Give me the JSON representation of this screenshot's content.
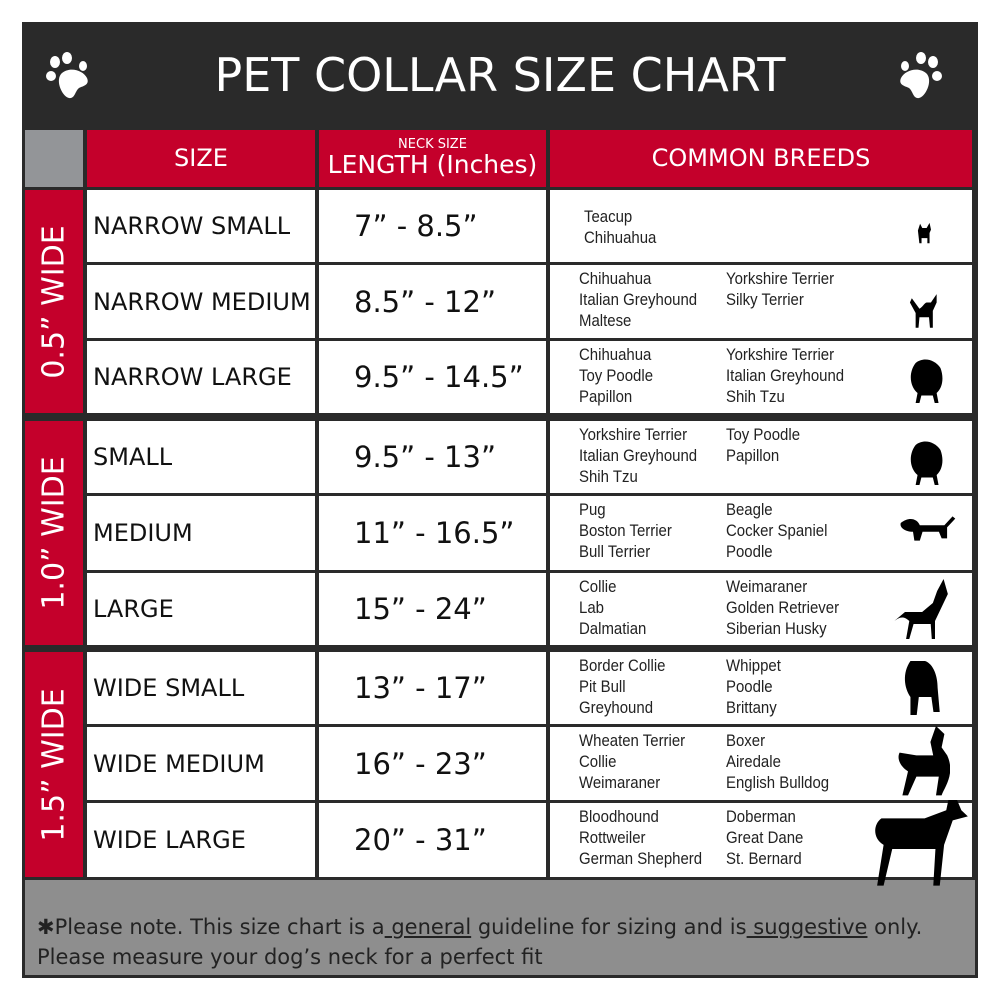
{
  "title": "PET COLLAR SIZE CHART",
  "headers": {
    "size": "SIZE",
    "length_small": "NECK SIZE",
    "length": "LENGTH (Inches)",
    "breeds": "COMMON BREEDS"
  },
  "groups": [
    {
      "label": "0.5” WIDE"
    },
    {
      "label": "1.0” WIDE"
    },
    {
      "label": "1.5” WIDE"
    }
  ],
  "rows": [
    {
      "size": "NARROW SMALL",
      "length": "7” - 8.5”",
      "breeds_left": [
        "Teacup",
        "Chihuahua"
      ],
      "breeds_right": []
    },
    {
      "size": "NARROW MEDIUM",
      "length": "8.5” - 12”",
      "breeds_left": [
        "Chihuahua",
        "Italian Greyhound",
        "Maltese"
      ],
      "breeds_right": [
        "Yorkshire Terrier",
        "Silky Terrier"
      ]
    },
    {
      "size": "NARROW LARGE",
      "length": "9.5” - 14.5”",
      "breeds_left": [
        "Chihuahua",
        "Toy Poodle",
        "Papillon"
      ],
      "breeds_right": [
        "Yorkshire Terrier",
        "Italian Greyhound",
        "Shih Tzu"
      ]
    },
    {
      "size": "SMALL",
      "length": "9.5” - 13”",
      "breeds_left": [
        "Yorkshire Terrier",
        "Italian Greyhound",
        "Shih Tzu"
      ],
      "breeds_right": [
        "Toy Poodle",
        "Papillon"
      ]
    },
    {
      "size": "MEDIUM",
      "length": "11” - 16.5”",
      "breeds_left": [
        "Pug",
        "Boston Terrier",
        "Bull Terrier"
      ],
      "breeds_right": [
        "Beagle",
        "Cocker Spaniel",
        "Poodle"
      ]
    },
    {
      "size": "LARGE",
      "length": "15” - 24”",
      "breeds_left": [
        "Collie",
        "Lab",
        "Dalmatian"
      ],
      "breeds_right": [
        "Weimaraner",
        "Golden Retriever",
        "Siberian Husky"
      ]
    },
    {
      "size": "WIDE SMALL",
      "length": "13” - 17”",
      "breeds_left": [
        "Border Collie",
        "Pit Bull",
        "Greyhound"
      ],
      "breeds_right": [
        "Whippet",
        "Poodle",
        "Brittany"
      ]
    },
    {
      "size": "WIDE MEDIUM",
      "length": "16” - 23”",
      "breeds_left": [
        "Wheaten Terrier",
        "Collie",
        "Weimaraner"
      ],
      "breeds_right": [
        "Boxer",
        "Airedale",
        "English Bulldog"
      ]
    },
    {
      "size": "WIDE LARGE",
      "length": "20” - 31”",
      "breeds_left": [
        "Bloodhound",
        "Rottweiler",
        "German Shepherd"
      ],
      "breeds_right": [
        "Doberman",
        "Great Dane",
        "St. Bernard"
      ]
    }
  ],
  "footer": {
    "p1": "✱Please note. This size chart is a",
    "w1": " general",
    "p2": " guideline for sizing and is",
    "w2": " suggestive",
    "p3": " only.",
    "line2": "Please measure your dog’s neck for a perfect fit"
  },
  "colors": {
    "accent": "#c4002b",
    "header": "#2a2a2a",
    "gray": "#939598"
  },
  "icons": [
    "paw-icon",
    "dog-silhouette-icon"
  ]
}
